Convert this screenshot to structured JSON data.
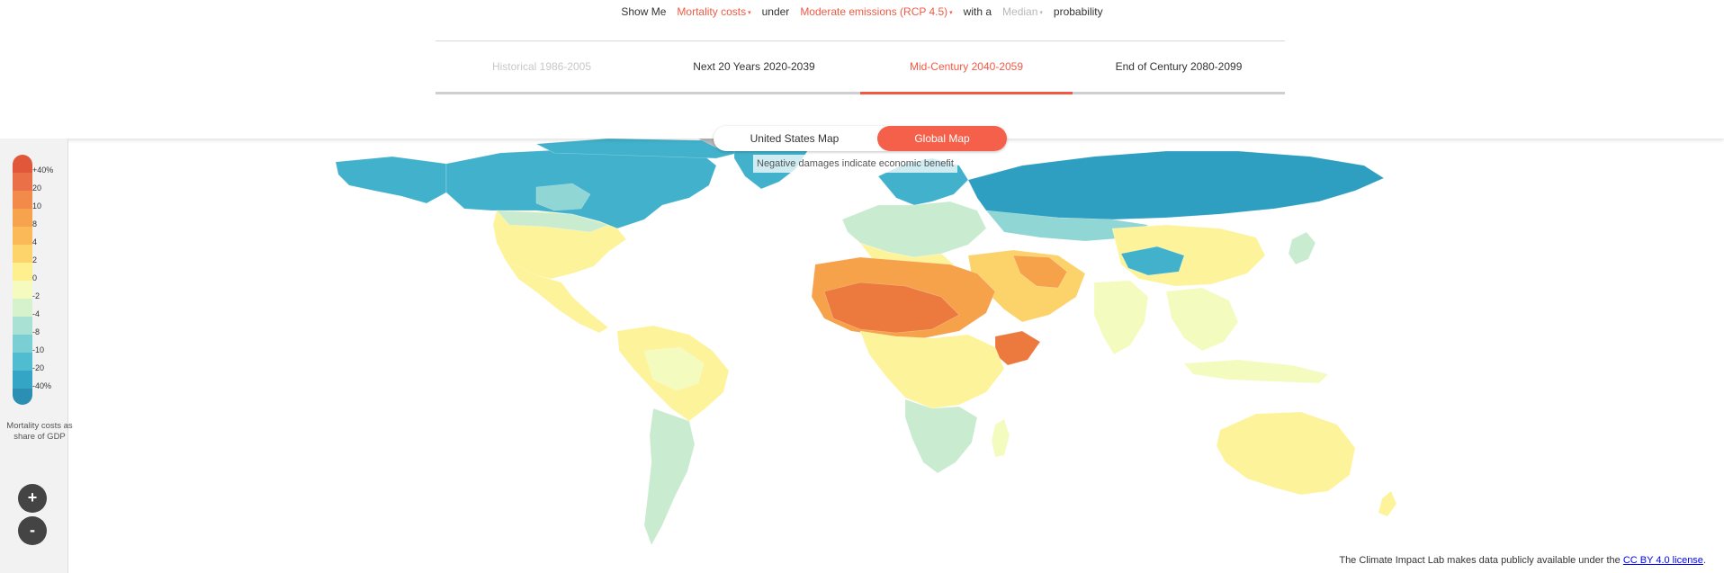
{
  "sentence": {
    "prefix": "Show Me",
    "metric": "Mortality costs",
    "under": "under",
    "scenario": "Moderate emissions (RCP 4.5)",
    "with_a": "with a",
    "probability_value": "Median",
    "suffix": "probability",
    "caret": "▾"
  },
  "period_tabs": [
    {
      "label": "Historical 1986-2005",
      "state": "disabled"
    },
    {
      "label": "Next 20 Years 2020-2039",
      "state": "normal"
    },
    {
      "label": "Mid-Century 2040-2059",
      "state": "active"
    },
    {
      "label": "End of Century 2080-2099",
      "state": "normal"
    }
  ],
  "map_toggle": {
    "us_label": "United States Map",
    "global_label": "Global Map",
    "selected": "Global Map"
  },
  "note": "Negative damages indicate economic benefit",
  "legend": {
    "title": "Mortality costs as share of GDP",
    "labels": [
      "+40%",
      "20",
      "10",
      "8",
      "4",
      "2",
      "0",
      "-2",
      "-4",
      "-8",
      "-10",
      "-20",
      "-40%"
    ],
    "colors": [
      "#e0573a",
      "#ea7048",
      "#f28a4a",
      "#f7a24c",
      "#fbba57",
      "#fdd46b",
      "#fef08f",
      "#f5fbbf",
      "#d6f2cd",
      "#a9e1d4",
      "#79cfd3",
      "#4fbcd0",
      "#34a5c4",
      "#2b8fb4"
    ]
  },
  "zoom": {
    "in_label": "+",
    "out_label": "-"
  },
  "license": {
    "text": "The Climate Impact Lab makes data publicly available under the",
    "link_text": "CC BY 4.0 license",
    "end": "."
  },
  "map_colors": {
    "cold_dark": "#2e9fc0",
    "cold": "#42b2cc",
    "cool": "#8fd6d4",
    "mild": "#c9ecd0",
    "neutral": "#f4fbbf",
    "warm": "#fdf39a",
    "hot": "#fcd36a",
    "hotter": "#f6a24a",
    "hottest": "#ec7a3e",
    "ice": "#b8b8b8"
  }
}
